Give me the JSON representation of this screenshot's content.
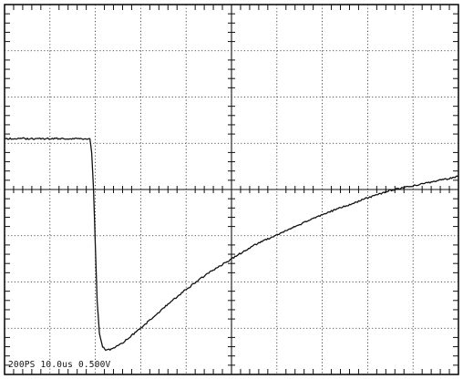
{
  "chart_data": {
    "type": "line",
    "title": "",
    "xlabel": "",
    "ylabel": "",
    "readout": "200PS 10.0us 0.500V",
    "x_unit": "us",
    "y_unit": "V",
    "time_per_div_us": 10,
    "volts_per_div": 0.5,
    "xlim": [
      0,
      100
    ],
    "ylim": [
      -2.0,
      2.0
    ],
    "grid": true,
    "series": [
      {
        "values": [
          [
            0,
            0.55
          ],
          [
            18.8,
            0.55
          ],
          [
            19.2,
            0.4
          ],
          [
            19.6,
            0.0
          ],
          [
            20.0,
            -0.6
          ],
          [
            20.4,
            -1.2
          ],
          [
            20.9,
            -1.55
          ],
          [
            21.6,
            -1.7
          ],
          [
            22.5,
            -1.74
          ],
          [
            24.0,
            -1.72
          ],
          [
            26.0,
            -1.66
          ],
          [
            28.0,
            -1.58
          ],
          [
            30.0,
            -1.5
          ],
          [
            33.0,
            -1.37
          ],
          [
            36.0,
            -1.24
          ],
          [
            40.0,
            -1.08
          ],
          [
            45.0,
            -0.9
          ],
          [
            50.0,
            -0.75
          ],
          [
            55.0,
            -0.6
          ],
          [
            60.0,
            -0.49
          ],
          [
            65.0,
            -0.38
          ],
          [
            70.0,
            -0.27
          ],
          [
            75.0,
            -0.18
          ],
          [
            80.0,
            -0.09
          ],
          [
            85.0,
            -0.01
          ],
          [
            90.0,
            0.04
          ],
          [
            95.0,
            0.09
          ],
          [
            100.0,
            0.14
          ]
        ]
      }
    ]
  }
}
